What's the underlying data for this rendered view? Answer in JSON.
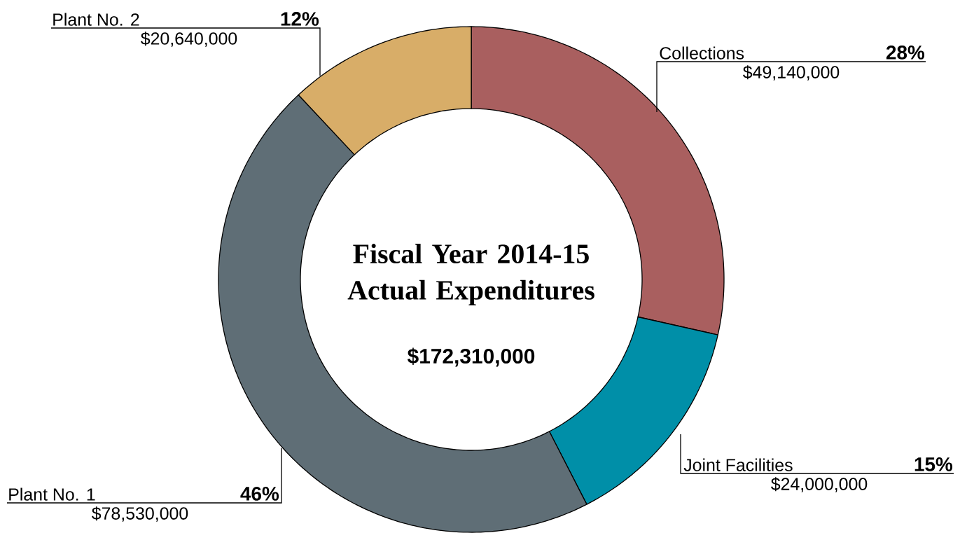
{
  "chart_data": {
    "type": "donut",
    "title": "Fiscal Year 2014-15 Actual Expenditures",
    "subtitle": "$172,310,000",
    "categories": [
      "Collections",
      "Joint Facilities",
      "Plant No. 1",
      "Plant No. 2"
    ],
    "values": [
      49140000,
      24000000,
      78530000,
      20640000
    ],
    "colors": [
      "#a95f5f",
      "#008fa8",
      "#5f6e76",
      "#d8ad68"
    ],
    "value_labels": [
      "$49,140,000",
      "$24,000,000",
      "$78,530,000",
      "$20,640,000"
    ],
    "annotations": [
      "28%",
      "15%",
      "46%",
      "12%"
    ]
  }
}
